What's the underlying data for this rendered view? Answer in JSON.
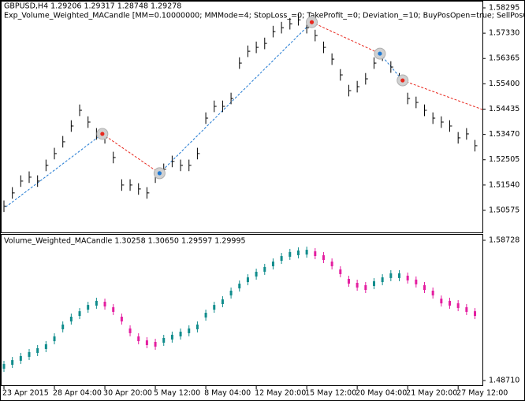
{
  "chart_data": [
    {
      "type": "hlc",
      "title": "GBPUSD,H4  1.29206 1.29317 1.28748 1.29278",
      "subtitle": "Exp_Volume_Weighted_MACandle [MM=0.10000000; MMMode=4; StopLoss_=0; TakeProfit_=0; Deviation_=10; BuyPosOpen=true; SellPosOpe",
      "color": "#000000",
      "high": [
        1.5095,
        1.5146,
        1.5191,
        1.5206,
        1.5191,
        1.5251,
        1.5296,
        1.5341,
        1.5401,
        1.5461,
        1.5416,
        1.5371,
        1.5356,
        1.5281,
        1.5176,
        1.5176,
        1.5161,
        1.5146,
        1.5206,
        1.5236,
        1.5266,
        1.5251,
        1.5251,
        1.5296,
        1.5431,
        1.5476,
        1.5476,
        1.5506,
        1.5641,
        1.5686,
        1.5701,
        1.5716,
        1.5761,
        1.5776,
        1.5791,
        1.5806,
        1.5776,
        1.5746,
        1.5701,
        1.5656,
        1.5596,
        1.5536,
        1.5551,
        1.5581,
        1.5641,
        1.5671,
        1.5626,
        1.5581,
        1.5506,
        1.5491,
        1.5461,
        1.5431,
        1.5416,
        1.5401,
        1.5356,
        1.5371,
        1.5326
      ],
      "low": [
        1.5051,
        1.5102,
        1.5147,
        1.5162,
        1.5147,
        1.5207,
        1.5252,
        1.5297,
        1.5357,
        1.5417,
        1.5372,
        1.5327,
        1.5312,
        1.5237,
        1.5132,
        1.5132,
        1.5117,
        1.5102,
        1.5162,
        1.5192,
        1.5222,
        1.5207,
        1.5207,
        1.5252,
        1.5387,
        1.5432,
        1.5432,
        1.5462,
        1.5597,
        1.5642,
        1.5657,
        1.5672,
        1.5717,
        1.5732,
        1.5747,
        1.5762,
        1.5732,
        1.5702,
        1.5657,
        1.5612,
        1.5552,
        1.5492,
        1.5507,
        1.5537,
        1.5597,
        1.5627,
        1.5582,
        1.5537,
        1.5462,
        1.5447,
        1.5417,
        1.5387,
        1.5372,
        1.5357,
        1.5312,
        1.5327,
        1.5282
      ],
      "close": [
        1.5073,
        1.5124,
        1.5169,
        1.5184,
        1.5169,
        1.5229,
        1.5274,
        1.5319,
        1.5379,
        1.5439,
        1.5394,
        1.5349,
        1.5334,
        1.5259,
        1.5154,
        1.5154,
        1.5139,
        1.5124,
        1.5184,
        1.5214,
        1.5244,
        1.5229,
        1.5229,
        1.5274,
        1.5409,
        1.5454,
        1.5454,
        1.5484,
        1.5619,
        1.5664,
        1.5679,
        1.5694,
        1.5739,
        1.5754,
        1.5769,
        1.5784,
        1.5754,
        1.5724,
        1.5679,
        1.5634,
        1.5574,
        1.5514,
        1.5529,
        1.5559,
        1.5619,
        1.5649,
        1.5604,
        1.5559,
        1.5484,
        1.5469,
        1.5439,
        1.5409,
        1.5394,
        1.5379,
        1.5334,
        1.5349,
        1.5304
      ],
      "trade_line": {
        "x": [
          0.2,
          11.7,
          18.5,
          36.6,
          44.7,
          47.4,
          57
        ],
        "y": [
          1.507,
          1.5349,
          1.5199,
          1.5775,
          1.5655,
          1.5553,
          1.5442
        ],
        "colors": [
          "#1e78d2",
          "#e8281e"
        ]
      },
      "markers": {
        "x": [
          11.7,
          18.5,
          36.6,
          44.7,
          47.4
        ],
        "y": [
          1.5349,
          1.5199,
          1.5775,
          1.5655,
          1.5553
        ],
        "colors": [
          "#e8281e",
          "#1e78d2",
          "#e8281e",
          "#1e78d2",
          "#e8281e"
        ]
      },
      "ylim": [
        1.49704,
        1.58535
      ],
      "yticks": [
        1.58295,
        {
          "value": 1.5733,
          "label": "1.57330"
        },
        1.56365,
        {
          "value": 1.554,
          "label": "1.55400"
        },
        1.54435,
        {
          "value": 1.5347,
          "label": "1.53470"
        },
        1.52505,
        {
          "value": 1.5154,
          "label": "1.51540"
        },
        1.50575
      ]
    },
    {
      "type": "indicator",
      "title": "Volume_Weighted_MACandle 1.30258 1.30650 1.29597 1.29995",
      "up_color": "#108c8c",
      "down_color": "#e41ea0",
      "categories": [
        "23 Apr 2015",
        null,
        null,
        null,
        null,
        null,
        "28 Apr 04:00",
        null,
        null,
        null,
        null,
        null,
        "30 Apr 20:00",
        null,
        null,
        null,
        null,
        null,
        "5 May 12:00",
        null,
        null,
        null,
        null,
        null,
        "8 May 04:00",
        null,
        null,
        null,
        null,
        null,
        "12 May 20:00",
        null,
        null,
        null,
        null,
        null,
        "15 May 12:00",
        null,
        null,
        null,
        null,
        null,
        "20 May 04:00",
        null,
        null,
        null,
        null,
        null,
        "21 May 20:00",
        null,
        null,
        null,
        null,
        null,
        "27 May 12:00",
        null,
        null
      ],
      "values": [
        1.4972,
        1.5,
        1.5029,
        1.5057,
        1.5085,
        1.5113,
        1.5169,
        1.5254,
        1.531,
        1.5349,
        1.5394,
        1.5423,
        1.5417,
        1.5378,
        1.531,
        1.5226,
        1.5169,
        1.5141,
        1.513,
        1.5158,
        1.5181,
        1.5203,
        1.5226,
        1.5254,
        1.5338,
        1.5394,
        1.5434,
        1.5496,
        1.5546,
        1.5591,
        1.5631,
        1.5665,
        1.5704,
        1.5743,
        1.5772,
        1.5783,
        1.5788,
        1.5777,
        1.5749,
        1.5704,
        1.5648,
        1.558,
        1.5552,
        1.5535,
        1.5563,
        1.5591,
        1.562,
        1.562,
        1.5603,
        1.5575,
        1.5535,
        1.5496,
        1.5439,
        1.5423,
        1.5406,
        1.5378,
        1.5349
      ],
      "ylim": [
        1.48316,
        1.59122
      ],
      "yticks": [
        1.58728,
        {
          "value": 1.4871,
          "label": "1.48710"
        }
      ]
    }
  ]
}
